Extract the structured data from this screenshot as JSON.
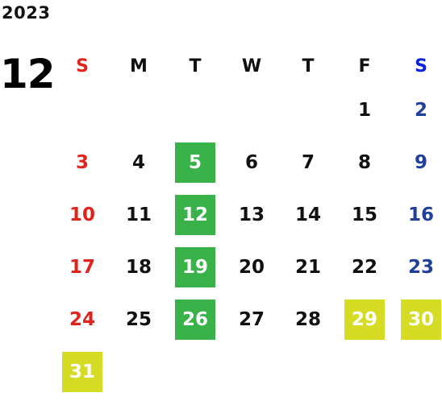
{
  "year": "2023",
  "month": "12",
  "colors": {
    "sunday": "#e0241b",
    "saturday": "#1f3f9a",
    "green_highlight": "#3ab24a",
    "yellow_highlight": "#d5dc23"
  },
  "weekdays": [
    "S",
    "M",
    "T",
    "W",
    "T",
    "F",
    "S"
  ],
  "weeks": [
    [
      {
        "day": "",
        "type": "empty"
      },
      {
        "day": "",
        "type": "empty"
      },
      {
        "day": "",
        "type": "empty"
      },
      {
        "day": "",
        "type": "empty"
      },
      {
        "day": "",
        "type": "empty"
      },
      {
        "day": "1",
        "type": "normal"
      },
      {
        "day": "2",
        "type": "normal"
      }
    ],
    [
      {
        "day": "3",
        "type": "normal"
      },
      {
        "day": "4",
        "type": "normal"
      },
      {
        "day": "5",
        "type": "green"
      },
      {
        "day": "6",
        "type": "normal"
      },
      {
        "day": "7",
        "type": "normal"
      },
      {
        "day": "8",
        "type": "normal"
      },
      {
        "day": "9",
        "type": "normal"
      }
    ],
    [
      {
        "day": "10",
        "type": "normal"
      },
      {
        "day": "11",
        "type": "normal"
      },
      {
        "day": "12",
        "type": "green"
      },
      {
        "day": "13",
        "type": "normal"
      },
      {
        "day": "14",
        "type": "normal"
      },
      {
        "day": "15",
        "type": "normal"
      },
      {
        "day": "16",
        "type": "normal"
      }
    ],
    [
      {
        "day": "17",
        "type": "normal"
      },
      {
        "day": "18",
        "type": "normal"
      },
      {
        "day": "19",
        "type": "green"
      },
      {
        "day": "20",
        "type": "normal"
      },
      {
        "day": "21",
        "type": "normal"
      },
      {
        "day": "22",
        "type": "normal"
      },
      {
        "day": "23",
        "type": "normal"
      }
    ],
    [
      {
        "day": "24",
        "type": "normal"
      },
      {
        "day": "25",
        "type": "normal"
      },
      {
        "day": "26",
        "type": "green"
      },
      {
        "day": "27",
        "type": "normal"
      },
      {
        "day": "28",
        "type": "normal"
      },
      {
        "day": "29",
        "type": "yellow"
      },
      {
        "day": "30",
        "type": "yellow"
      }
    ],
    [
      {
        "day": "31",
        "type": "yellow"
      },
      {
        "day": "",
        "type": "empty"
      },
      {
        "day": "",
        "type": "empty"
      },
      {
        "day": "",
        "type": "empty"
      },
      {
        "day": "",
        "type": "empty"
      },
      {
        "day": "",
        "type": "empty"
      },
      {
        "day": "",
        "type": "empty"
      }
    ]
  ]
}
